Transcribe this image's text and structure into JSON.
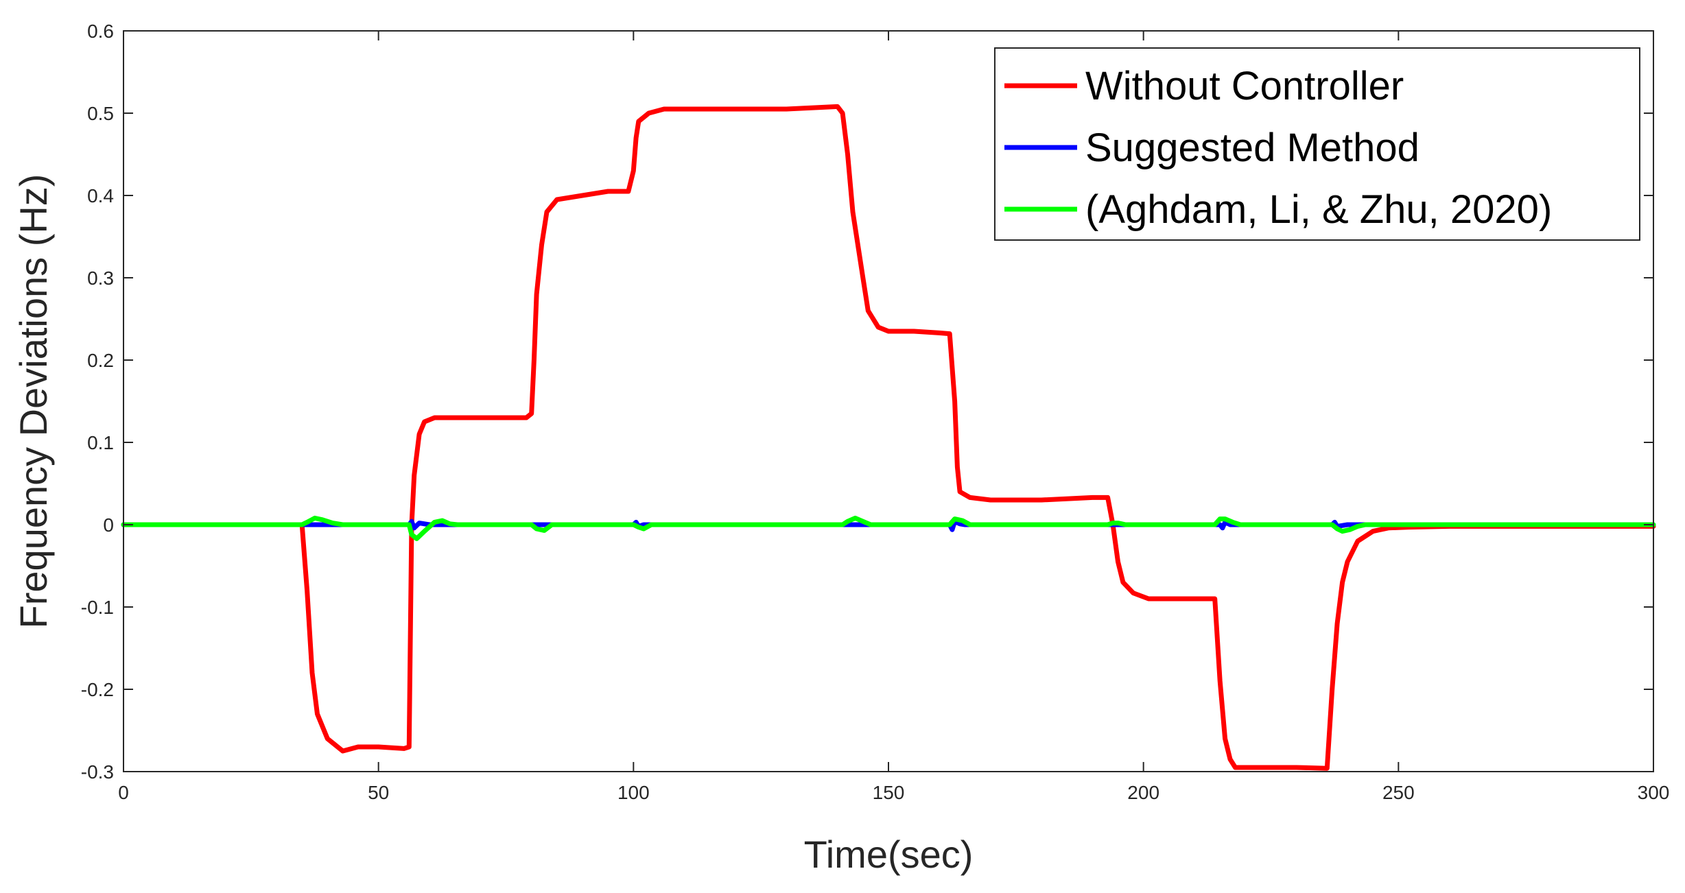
{
  "chart_data": {
    "type": "line",
    "title": "",
    "xlabel": "Time(sec)",
    "ylabel": "Frequency Deviations (Hz)",
    "xlim": [
      0,
      300
    ],
    "ylim": [
      -0.3,
      0.6
    ],
    "xticks": [
      "0",
      "50",
      "100",
      "150",
      "200",
      "250",
      "300"
    ],
    "yticks": [
      "-0.3",
      "-0.2",
      "-0.1",
      "0",
      "0.1",
      "0.2",
      "0.3",
      "0.4",
      "0.5",
      "0.6"
    ],
    "grid": false,
    "legend_position": "top-right",
    "series": [
      {
        "name": "Without Controller",
        "color": "#ff0000",
        "x": [
          0,
          35,
          36,
          37,
          38,
          40,
          43,
          46,
          50,
          55,
          56,
          56.5,
          57,
          58,
          59,
          61,
          65,
          70,
          75,
          79,
          80,
          80.5,
          81,
          82,
          83,
          85,
          90,
          95,
          99,
          100,
          100.5,
          101,
          103,
          106,
          110,
          120,
          130,
          140,
          141,
          142,
          143,
          145,
          146,
          148,
          150,
          155,
          160,
          162,
          163,
          163.5,
          164,
          166,
          170,
          180,
          190,
          193,
          194,
          195,
          196,
          198,
          201,
          205,
          210,
          214,
          215,
          216,
          217,
          218,
          220,
          225,
          230,
          236,
          237,
          238,
          239,
          240,
          242,
          245,
          248,
          252,
          260,
          270,
          280,
          290,
          300
        ],
        "y": [
          0,
          0,
          -0.08,
          -0.18,
          -0.23,
          -0.26,
          -0.275,
          -0.27,
          -0.27,
          -0.272,
          -0.27,
          0.0,
          0.06,
          0.11,
          0.125,
          0.13,
          0.13,
          0.13,
          0.13,
          0.13,
          0.135,
          0.2,
          0.28,
          0.34,
          0.38,
          0.395,
          0.4,
          0.405,
          0.405,
          0.43,
          0.47,
          0.49,
          0.5,
          0.505,
          0.505,
          0.505,
          0.505,
          0.508,
          0.5,
          0.45,
          0.38,
          0.3,
          0.26,
          0.24,
          0.235,
          0.235,
          0.233,
          0.232,
          0.15,
          0.07,
          0.04,
          0.033,
          0.03,
          0.03,
          0.033,
          0.033,
          0.0,
          -0.045,
          -0.07,
          -0.083,
          -0.09,
          -0.09,
          -0.09,
          -0.09,
          -0.19,
          -0.26,
          -0.285,
          -0.295,
          -0.295,
          -0.295,
          -0.295,
          -0.296,
          -0.2,
          -0.12,
          -0.07,
          -0.045,
          -0.02,
          -0.008,
          -0.004,
          -0.003,
          -0.002,
          -0.002,
          -0.002,
          -0.002,
          -0.002
        ]
      },
      {
        "name": "Suggested Method",
        "color": "#0000ff",
        "x": [
          0,
          56,
          56.5,
          57,
          58,
          60,
          100,
          100.5,
          101,
          102,
          162,
          162.5,
          163,
          164,
          165,
          215,
          215.5,
          216,
          217,
          237,
          237.5,
          238,
          240,
          300
        ],
        "y": [
          0,
          0,
          0.004,
          -0.004,
          0.002,
          0,
          0,
          0.003,
          -0.002,
          0,
          0,
          -0.006,
          0.004,
          0.001,
          0,
          0,
          -0.004,
          0.003,
          0,
          0,
          0.003,
          -0.002,
          0,
          0
        ]
      },
      {
        "name": "(Aghdam, Li, & Zhu, 2020)",
        "color": "#00ff00",
        "x": [
          0,
          35,
          36,
          37.5,
          39,
          41,
          43,
          56,
          56.5,
          57.5,
          59,
          61,
          62.5,
          64,
          65.5,
          80,
          81,
          82.5,
          84,
          100,
          101,
          102,
          103.5,
          141,
          142,
          143.5,
          145,
          146.5,
          162,
          163,
          164.5,
          166,
          193,
          194,
          195,
          196.5,
          214,
          215,
          216,
          217.5,
          219,
          237,
          238,
          239,
          240.5,
          242,
          243.5,
          300
        ],
        "y": [
          0,
          0,
          0.003,
          0.008,
          0.006,
          0.002,
          0,
          0,
          -0.012,
          -0.017,
          -0.008,
          0.003,
          0.005,
          0.001,
          0,
          0,
          -0.005,
          -0.007,
          0,
          0,
          -0.003,
          -0.005,
          0,
          0,
          0.004,
          0.008,
          0.004,
          0,
          0,
          0.007,
          0.005,
          0,
          0,
          0.002,
          0.002,
          0,
          0,
          0.007,
          0.007,
          0.003,
          0,
          0,
          -0.005,
          -0.008,
          -0.006,
          -0.002,
          0,
          0
        ]
      }
    ]
  }
}
